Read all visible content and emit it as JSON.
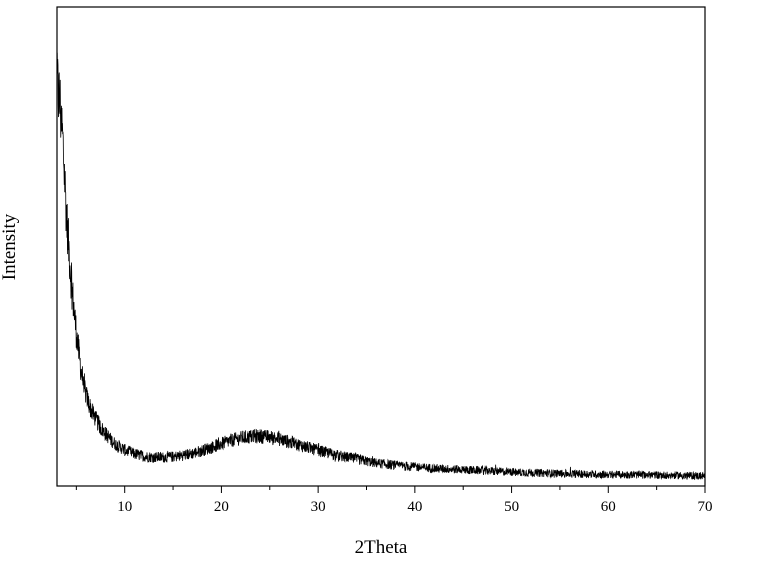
{
  "chart_data": {
    "type": "line",
    "title": "",
    "xlabel": "2Theta",
    "ylabel": "Intensity",
    "xlim": [
      3,
      70
    ],
    "ylim": [
      0,
      1
    ],
    "x_ticks": [
      10,
      20,
      30,
      40,
      50,
      60,
      70
    ],
    "x_minor_ticks": [
      5,
      15,
      25,
      35,
      45,
      55,
      65
    ],
    "show_y_tick_labels": false,
    "grid": false,
    "legend": "none",
    "line_color": "#000000",
    "series": [
      {
        "x": [
          3,
          3.3,
          3.6,
          4.0,
          4.5,
          5.0,
          5.5,
          6.0,
          6.5,
          7.0,
          7.5,
          8,
          8.5,
          9,
          10,
          11,
          12,
          13,
          14,
          15,
          16,
          17,
          18,
          19,
          20,
          21,
          22,
          23,
          24,
          25,
          26,
          27,
          28,
          29,
          30,
          31,
          32,
          33,
          34,
          35,
          36,
          38,
          40,
          42,
          45,
          48,
          50,
          55,
          60,
          65,
          70
        ],
        "values": [
          0.84,
          0.8,
          0.72,
          0.56,
          0.42,
          0.32,
          0.24,
          0.19,
          0.16,
          0.14,
          0.122,
          0.11,
          0.098,
          0.088,
          0.075,
          0.067,
          0.062,
          0.06,
          0.06,
          0.061,
          0.064,
          0.068,
          0.074,
          0.081,
          0.088,
          0.095,
          0.1,
          0.103,
          0.104,
          0.102,
          0.098,
          0.092,
          0.086,
          0.08,
          0.074,
          0.069,
          0.064,
          0.06,
          0.056,
          0.052,
          0.048,
          0.043,
          0.04,
          0.037,
          0.034,
          0.031,
          0.029,
          0.026,
          0.024,
          0.023,
          0.021
        ]
      }
    ]
  }
}
